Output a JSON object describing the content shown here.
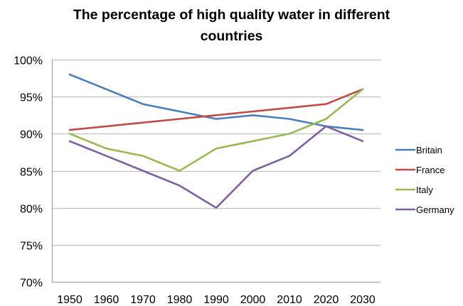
{
  "chart_data": {
    "type": "line",
    "title_lines": [
      "The percentage of high quality water in different",
      "countries"
    ],
    "title": "The percentage of high quality water in different countries",
    "xlabel": "",
    "ylabel": "",
    "x": [
      "1950",
      "1960",
      "1970",
      "1980",
      "1990",
      "2000",
      "2010",
      "2020",
      "2030"
    ],
    "ylim": [
      70,
      100
    ],
    "yticks": [
      70,
      75,
      80,
      85,
      90,
      95,
      100
    ],
    "ytick_labels": [
      "70%",
      "75%",
      "80%",
      "85%",
      "90%",
      "95%",
      "100%"
    ],
    "grid": true,
    "legend_position": "right",
    "series": [
      {
        "name": "Britain",
        "color": "#4a7ebb",
        "values": [
          98,
          96,
          94,
          93,
          92,
          92.5,
          92,
          91,
          90.5
        ]
      },
      {
        "name": "France",
        "color": "#be4b48",
        "values": [
          90.5,
          91,
          91.5,
          92,
          92.5,
          93,
          93.5,
          94,
          96
        ]
      },
      {
        "name": "Italy",
        "color": "#98b954",
        "values": [
          90,
          88,
          87,
          85,
          88,
          89,
          90,
          92,
          96
        ]
      },
      {
        "name": "Germany",
        "color": "#7d60a0",
        "values": [
          89,
          87,
          85,
          83,
          80,
          85,
          87,
          91,
          89
        ]
      }
    ]
  }
}
